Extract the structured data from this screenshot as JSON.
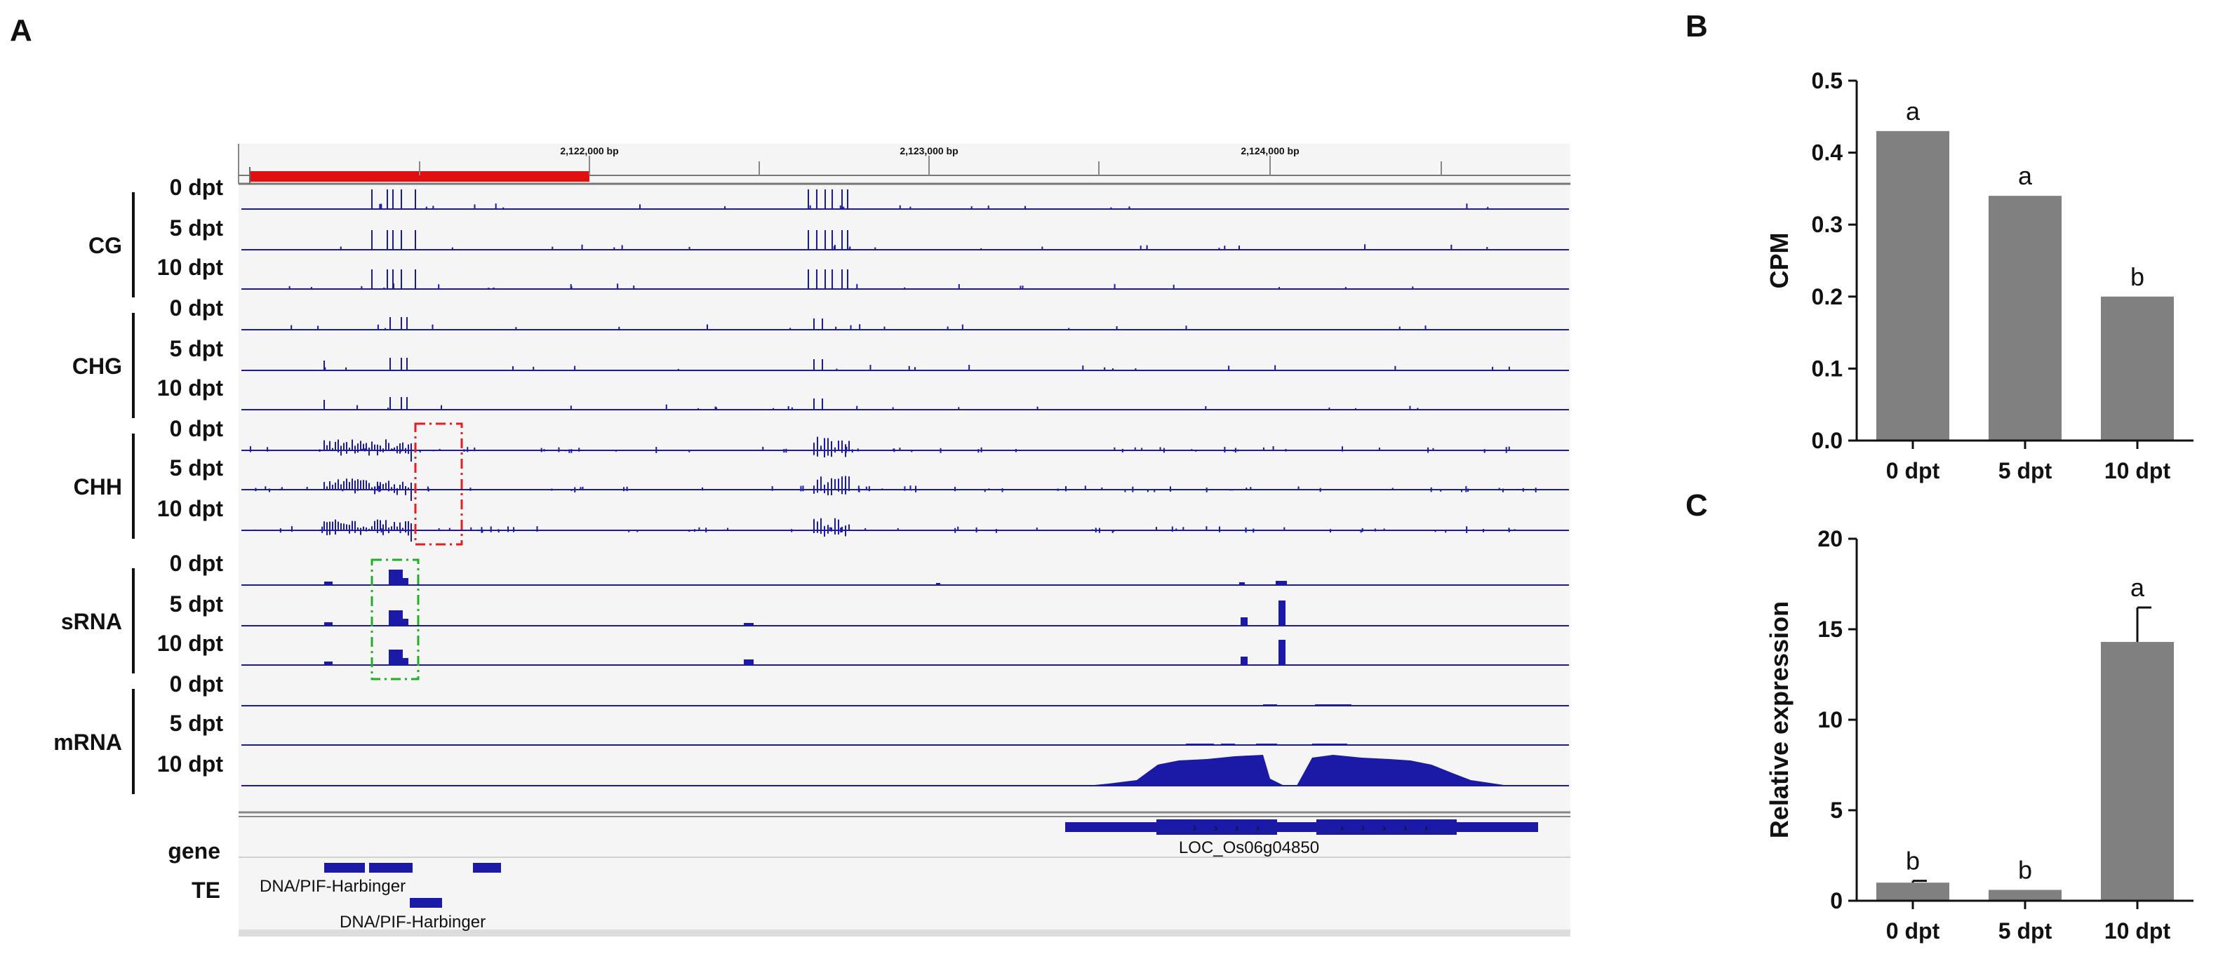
{
  "panels": {
    "a": "A",
    "b": "B",
    "c": "C"
  },
  "browser": {
    "coordinates": [
      "2,122,000 bp",
      "2,123,000 bp",
      "2,124,000 bp"
    ],
    "groups": [
      {
        "name": "CG",
        "samples": [
          "0 dpt",
          "5 dpt",
          "10 dpt"
        ]
      },
      {
        "name": "CHG",
        "samples": [
          "0 dpt",
          "5 dpt",
          "10 dpt"
        ]
      },
      {
        "name": "CHH",
        "samples": [
          "0 dpt",
          "5 dpt",
          "10 dpt"
        ]
      },
      {
        "name": "sRNA",
        "samples": [
          "0 dpt",
          "5 dpt",
          "10 dpt"
        ]
      },
      {
        "name": "mRNA",
        "samples": [
          "0 dpt",
          "5 dpt",
          "10 dpt"
        ]
      }
    ],
    "annotation_tracks": [
      "gene",
      "TE"
    ],
    "gene_name": "LOC_Os06g04850",
    "te_names": [
      "DNA/PIF-Harbinger",
      "DNA/PIF-Harbinger"
    ],
    "colors": {
      "track": "#1a1aa6",
      "highlight_red": "#e02020",
      "highlight_green": "#22b022",
      "chromosome_region": "#e01010"
    }
  },
  "chart_data": [
    {
      "type": "bar",
      "panel": "B",
      "categories": [
        "0 dpt",
        "5 dpt",
        "10 dpt"
      ],
      "values": [
        0.43,
        0.34,
        0.2
      ],
      "labels": [
        "a",
        "a",
        "b"
      ],
      "ylabel": "CPM",
      "ylim": [
        0,
        0.5
      ],
      "yticks": [
        "0.0",
        "0.1",
        "0.2",
        "0.3",
        "0.4",
        "0.5"
      ],
      "color": "#808080"
    },
    {
      "type": "bar",
      "panel": "C",
      "categories": [
        "0 dpt",
        "5 dpt",
        "10 dpt"
      ],
      "values": [
        1.0,
        0.6,
        14.3
      ],
      "errors": [
        0.1,
        0.0,
        1.9
      ],
      "labels": [
        "b",
        "b",
        "a"
      ],
      "ylabel": "Relative expression",
      "ylim": [
        0,
        20
      ],
      "yticks": [
        "0",
        "5",
        "10",
        "15",
        "20"
      ],
      "color": "#808080"
    }
  ]
}
